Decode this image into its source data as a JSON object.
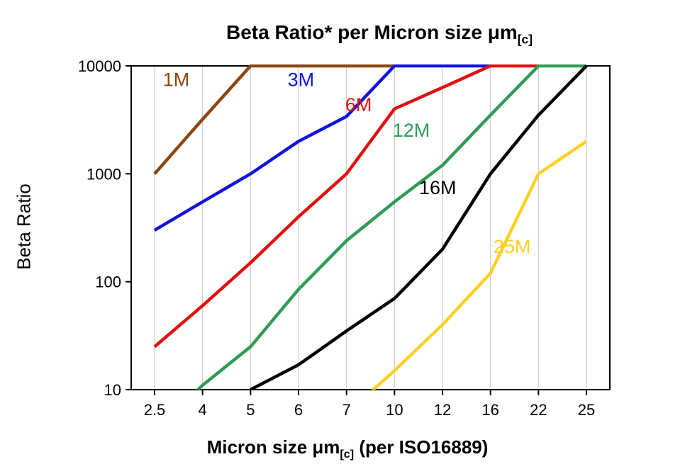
{
  "chart_data": {
    "type": "line",
    "title_main": "Beta Ratio* per Micron size μm",
    "title_sub": "[c]",
    "ylabel": "Beta Ratio",
    "xlabel_main": "Micron size μm",
    "xlabel_sub": "[c]",
    "xlabel_tail": " (per ISO16889)",
    "x_scale": "categorical",
    "y_scale": "log",
    "ylim": [
      10,
      10000
    ],
    "yticks": [
      10,
      100,
      1000,
      10000
    ],
    "categories": [
      "2.5",
      "4",
      "5",
      "6",
      "7",
      "10",
      "12",
      "16",
      "22",
      "25"
    ],
    "grid": "vertical",
    "legend_position": "inline-labels",
    "series": [
      {
        "name": "1M",
        "color": "#8b4513",
        "values": [
          1000,
          3200,
          10000,
          10000,
          10000,
          10000,
          null,
          null,
          null,
          null
        ],
        "label_at": {
          "x": 0.45,
          "y": 6500
        }
      },
      {
        "name": "3M",
        "color": "#1212e0",
        "values": [
          300,
          550,
          1000,
          2000,
          3400,
          10000,
          10000,
          10000,
          null,
          null
        ],
        "label_at": {
          "x": 3.05,
          "y": 6500
        }
      },
      {
        "name": "6M",
        "color": "#e01010",
        "values": [
          25,
          60,
          150,
          400,
          1000,
          4000,
          6300,
          10000,
          10000,
          null
        ],
        "label_at": {
          "x": 4.25,
          "y": 3800
        }
      },
      {
        "name": "12M",
        "color": "#2e9b57",
        "values": [
          4,
          11,
          25,
          85,
          240,
          550,
          1200,
          3500,
          10000,
          10000
        ],
        "label_at": {
          "x": 5.35,
          "y": 2200
        }
      },
      {
        "name": "16M",
        "color": "#000000",
        "values": [
          null,
          null,
          10,
          17,
          35,
          70,
          200,
          1000,
          3500,
          10000
        ],
        "label_at": {
          "x": 5.9,
          "y": 650
        }
      },
      {
        "name": "25M",
        "color": "#ffd024",
        "values": [
          null,
          null,
          null,
          null,
          6,
          15,
          40,
          120,
          1000,
          2000
        ],
        "label_at": {
          "x": 7.45,
          "y": 185
        }
      }
    ]
  }
}
